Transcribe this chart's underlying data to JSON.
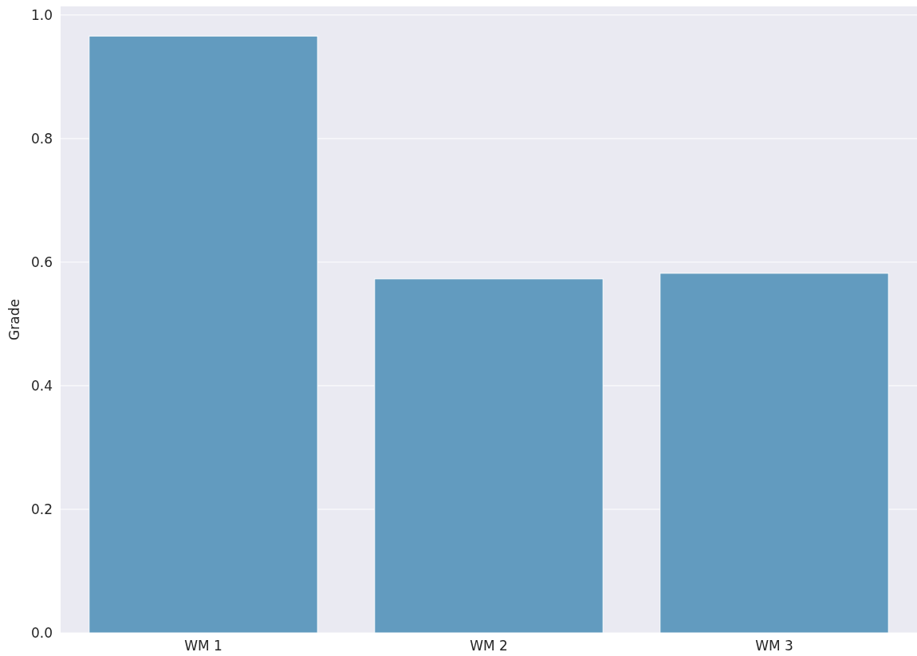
{
  "chart_data": {
    "type": "bar",
    "ylabel": "Grade",
    "categories": [
      "WM 1",
      "WM 2",
      "WM 3"
    ],
    "values": [
      0.966,
      0.573,
      0.582
    ],
    "color": "#629bbf",
    "ylim": [
      0,
      1.014
    ],
    "yticks": [
      {
        "value": 0,
        "label": "0.0"
      },
      {
        "value": 0.2,
        "label": "0.2"
      },
      {
        "value": 0.4,
        "label": "0.4"
      },
      {
        "value": 0.6,
        "label": "0.6"
      },
      {
        "value": 0.8,
        "label": "0.8"
      },
      {
        "value": 1,
        "label": "1.0"
      }
    ],
    "grid": "y"
  }
}
